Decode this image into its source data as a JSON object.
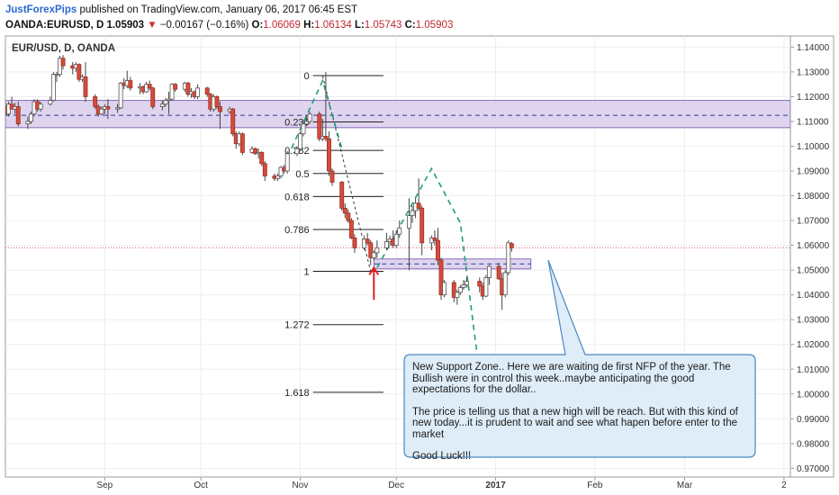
{
  "header": {
    "author": "JustForexPips",
    "published": "published on TradingView.com, January 06, 2017 06:45 EST",
    "symbol": "OANDA:EURUSD, D",
    "last": "1.05903",
    "arrow": "▼",
    "change": "−0.00167 (−0.16%)",
    "o_label": "O:",
    "o": "1.06069",
    "h_label": "H:",
    "h": "1.06134",
    "l_label": "L:",
    "l": "1.05743",
    "c_label": "C:",
    "c": "1.05903"
  },
  "chart_data": {
    "type": "candlestick",
    "title": "EUR/USD, D, OANDA",
    "ylim": [
      0.9665,
      1.1445
    ],
    "y_ticks": [
      "1.14000",
      "1.13000",
      "1.12000",
      "1.11000",
      "1.10000",
      "1.09000",
      "1.08000",
      "1.07000",
      "1.06000",
      "1.05000",
      "1.04000",
      "1.03000",
      "1.02000",
      "1.01000",
      "1.00000",
      "0.99000",
      "0.98000",
      "0.97000"
    ],
    "x_labels": [
      {
        "label": "Sep",
        "date": "2016-09-01"
      },
      {
        "label": "Oct",
        "date": "2016-10-01"
      },
      {
        "label": "Nov",
        "date": "2016-11-01"
      },
      {
        "label": "Dec",
        "date": "2016-12-01"
      },
      {
        "label": "2017",
        "date": "2017-01-01"
      },
      {
        "label": "Feb",
        "date": "2017-02-01"
      },
      {
        "label": "Mar",
        "date": "2017-03-01"
      },
      {
        "label": "2",
        "date": "2017-04-01"
      }
    ],
    "x_range": [
      "2016-08-01",
      "2017-04-03"
    ],
    "last_price": 1.05903,
    "zones": [
      {
        "y_top": 1.1185,
        "y_bottom": 1.1075,
        "mid": 1.1125,
        "x_start": "2016-08-01",
        "x_end": "2017-04-03"
      },
      {
        "y_top": 1.0545,
        "y_bottom": 1.0505,
        "mid": 1.0525,
        "x_start": "2016-11-24",
        "x_end": "2017-01-12"
      }
    ],
    "fib": [
      {
        "label": "0",
        "value": 1.1285
      },
      {
        "label": "0.236",
        "value": 1.1098
      },
      {
        "label": "0.382",
        "value": 1.0983
      },
      {
        "label": "0.5",
        "value": 1.089
      },
      {
        "label": "0.618",
        "value": 1.0797
      },
      {
        "label": "0.786",
        "value": 1.0664
      },
      {
        "label": "1",
        "value": 1.0495
      },
      {
        "label": "1.272",
        "value": 1.028
      },
      {
        "label": "1.618",
        "value": 1.0007
      }
    ],
    "fib_x": [
      "2016-11-05",
      "2016-11-27"
    ],
    "fib_anchor": {
      "from": [
        "2016-11-08",
        1.1285
      ],
      "to": [
        "2016-11-23",
        1.0495
      ]
    },
    "projection_lines": [
      [
        [
          "2016-10-28",
          1.0955
        ],
        [
          "2016-11-08",
          1.1265
        ],
        [
          "2016-11-14",
          1.099
        ]
      ],
      [
        [
          "2016-11-25",
          1.051
        ],
        [
          "2016-12-12",
          1.091
        ],
        [
          "2016-12-21",
          1.069
        ],
        [
          "2016-12-27",
          1.008
        ]
      ]
    ],
    "arrow": {
      "date": "2016-11-24",
      "from": 1.038,
      "to": 1.051
    },
    "candles": [
      [
        "2016-08-01",
        1.116,
        1.1175,
        1.1125,
        1.113
      ],
      [
        "2016-08-02",
        1.113,
        1.118,
        1.112,
        1.117
      ],
      [
        "2016-08-03",
        1.117,
        1.12,
        1.1155,
        1.115
      ],
      [
        "2016-08-04",
        1.115,
        1.1175,
        1.113,
        1.116
      ],
      [
        "2016-08-05",
        1.116,
        1.118,
        1.108,
        1.109
      ],
      [
        "2016-08-08",
        1.109,
        1.112,
        1.107,
        1.11
      ],
      [
        "2016-08-09",
        1.11,
        1.114,
        1.109,
        1.113
      ],
      [
        "2016-08-10",
        1.113,
        1.119,
        1.112,
        1.118
      ],
      [
        "2016-08-11",
        1.118,
        1.119,
        1.114,
        1.115
      ],
      [
        "2016-08-12",
        1.115,
        1.118,
        1.114,
        1.117
      ],
      [
        "2016-08-15",
        1.117,
        1.12,
        1.1165,
        1.1185
      ],
      [
        "2016-08-16",
        1.1185,
        1.13,
        1.118,
        1.129
      ],
      [
        "2016-08-17",
        1.129,
        1.13,
        1.126,
        1.129
      ],
      [
        "2016-08-18",
        1.129,
        1.1365,
        1.128,
        1.1355
      ],
      [
        "2016-08-19",
        1.1355,
        1.1368,
        1.131,
        1.1325
      ],
      [
        "2016-08-22",
        1.1325,
        1.134,
        1.129,
        1.1315
      ],
      [
        "2016-08-23",
        1.1315,
        1.134,
        1.13,
        1.133
      ],
      [
        "2016-08-24",
        1.133,
        1.1335,
        1.126,
        1.127
      ],
      [
        "2016-08-25",
        1.127,
        1.129,
        1.126,
        1.128
      ],
      [
        "2016-08-26",
        1.128,
        1.134,
        1.118,
        1.12
      ],
      [
        "2016-08-29",
        1.12,
        1.121,
        1.115,
        1.116
      ],
      [
        "2016-08-30",
        1.116,
        1.117,
        1.112,
        1.113
      ],
      [
        "2016-08-31",
        1.113,
        1.116,
        1.1125,
        1.115
      ],
      [
        "2016-09-01",
        1.115,
        1.117,
        1.113,
        1.116
      ],
      [
        "2016-09-02",
        1.116,
        1.119,
        1.111,
        1.115
      ],
      [
        "2016-09-05",
        1.115,
        1.117,
        1.1135,
        1.1155
      ],
      [
        "2016-09-06",
        1.1155,
        1.126,
        1.115,
        1.1255
      ],
      [
        "2016-09-07",
        1.1255,
        1.1275,
        1.123,
        1.1245
      ],
      [
        "2016-09-08",
        1.1245,
        1.1305,
        1.1235,
        1.1265
      ],
      [
        "2016-09-09",
        1.1265,
        1.128,
        1.1225,
        1.1235
      ],
      [
        "2016-09-12",
        1.1235,
        1.1255,
        1.121,
        1.124
      ],
      [
        "2016-09-13",
        1.124,
        1.1245,
        1.121,
        1.122
      ],
      [
        "2016-09-14",
        1.122,
        1.126,
        1.1215,
        1.125
      ],
      [
        "2016-09-15",
        1.125,
        1.1265,
        1.1225,
        1.1235
      ],
      [
        "2016-09-16",
        1.1235,
        1.124,
        1.115,
        1.116
      ],
      [
        "2016-09-19",
        1.116,
        1.1185,
        1.1145,
        1.117
      ],
      [
        "2016-09-20",
        1.117,
        1.1195,
        1.116,
        1.1185
      ],
      [
        "2016-09-21",
        1.1185,
        1.122,
        1.113,
        1.119
      ],
      [
        "2016-09-22",
        1.119,
        1.1255,
        1.1185,
        1.125
      ],
      [
        "2016-09-23",
        1.125,
        1.1255,
        1.122,
        1.123
      ],
      [
        "2016-09-26",
        1.123,
        1.126,
        1.122,
        1.1255
      ],
      [
        "2016-09-27",
        1.1255,
        1.126,
        1.12,
        1.121
      ],
      [
        "2016-09-28",
        1.121,
        1.1235,
        1.1195,
        1.122
      ],
      [
        "2016-09-29",
        1.122,
        1.1225,
        1.119,
        1.12
      ],
      [
        "2016-09-30",
        1.12,
        1.125,
        1.119,
        1.1235
      ],
      [
        "2016-10-03",
        1.1235,
        1.124,
        1.12,
        1.121
      ],
      [
        "2016-10-04",
        1.121,
        1.1215,
        1.114,
        1.115
      ],
      [
        "2016-10-05",
        1.115,
        1.121,
        1.114,
        1.12
      ],
      [
        "2016-10-06",
        1.12,
        1.1205,
        1.115,
        1.116
      ],
      [
        "2016-10-07",
        1.116,
        1.118,
        1.107,
        1.114
      ],
      [
        "2016-10-10",
        1.114,
        1.116,
        1.113,
        1.115
      ],
      [
        "2016-10-11",
        1.115,
        1.1155,
        1.104,
        1.105
      ],
      [
        "2016-10-12",
        1.105,
        1.106,
        1.099,
        1.101
      ],
      [
        "2016-10-13",
        1.101,
        1.106,
        1.1,
        1.105
      ],
      [
        "2016-10-14",
        1.105,
        1.1055,
        1.0965,
        1.0975
      ],
      [
        "2016-10-17",
        1.0975,
        1.1,
        1.097,
        1.099
      ],
      [
        "2016-10-18",
        1.099,
        1.0995,
        1.0965,
        1.097
      ],
      [
        "2016-10-19",
        1.097,
        1.099,
        1.095,
        1.0975
      ],
      [
        "2016-10-20",
        1.0975,
        1.098,
        1.092,
        1.093
      ],
      [
        "2016-10-21",
        1.093,
        1.094,
        1.086,
        1.088
      ],
      [
        "2016-10-24",
        1.088,
        1.089,
        1.086,
        1.087
      ],
      [
        "2016-10-25",
        1.087,
        1.089,
        1.086,
        1.088
      ],
      [
        "2016-10-26",
        1.088,
        1.092,
        1.087,
        1.0915
      ],
      [
        "2016-10-27",
        1.0915,
        1.0925,
        1.089,
        1.09
      ],
      [
        "2016-10-28",
        1.09,
        1.098,
        1.089,
        1.097
      ],
      [
        "2016-10-31",
        1.097,
        1.1,
        1.096,
        1.099
      ],
      [
        "2016-11-01",
        1.099,
        1.106,
        1.0985,
        1.105
      ],
      [
        "2016-11-02",
        1.105,
        1.11,
        1.104,
        1.109
      ],
      [
        "2016-11-03",
        1.109,
        1.1125,
        1.108,
        1.11
      ],
      [
        "2016-11-04",
        1.11,
        1.114,
        1.109,
        1.113
      ],
      [
        "2016-11-07",
        1.113,
        1.114,
        1.102,
        1.103
      ],
      [
        "2016-11-08",
        1.103,
        1.111,
        1.102,
        1.104
      ],
      [
        "2016-11-09",
        1.104,
        1.13,
        1.102,
        1.103
      ],
      [
        "2016-11-10",
        1.103,
        1.106,
        1.088,
        1.09
      ],
      [
        "2016-11-11",
        1.09,
        1.091,
        1.084,
        1.0855
      ],
      [
        "2016-11-14",
        1.0855,
        1.086,
        1.074,
        1.075
      ],
      [
        "2016-11-15",
        1.075,
        1.077,
        1.071,
        1.073
      ],
      [
        "2016-11-16",
        1.073,
        1.0745,
        1.069,
        1.07
      ],
      [
        "2016-11-17",
        1.07,
        1.071,
        1.0625,
        1.063
      ],
      [
        "2016-11-18",
        1.063,
        1.0645,
        1.057,
        1.059
      ],
      [
        "2016-11-21",
        1.059,
        1.064,
        1.058,
        1.0625
      ],
      [
        "2016-11-22",
        1.0625,
        1.065,
        1.06,
        1.061
      ],
      [
        "2016-11-23",
        1.061,
        1.062,
        1.052,
        1.055
      ],
      [
        "2016-11-24",
        1.055,
        1.058,
        1.054,
        1.057
      ],
      [
        "2016-11-25",
        1.057,
        1.062,
        1.055,
        1.059
      ],
      [
        "2016-11-28",
        1.059,
        1.065,
        1.058,
        1.0615
      ],
      [
        "2016-11-29",
        1.0615,
        1.064,
        1.06,
        1.0625
      ],
      [
        "2016-11-30",
        1.0625,
        1.066,
        1.059,
        1.06
      ],
      [
        "2016-12-01",
        1.06,
        1.066,
        1.059,
        1.0645
      ],
      [
        "2016-12-02",
        1.0645,
        1.07,
        1.063,
        1.067
      ],
      [
        "2016-12-05",
        1.067,
        1.079,
        1.05,
        1.072
      ],
      [
        "2016-12-06",
        1.072,
        1.076,
        1.069,
        1.074
      ],
      [
        "2016-12-07",
        1.074,
        1.079,
        1.071,
        1.077
      ],
      [
        "2016-12-08",
        1.077,
        1.087,
        1.074,
        1.075
      ],
      [
        "2016-12-09",
        1.075,
        1.076,
        1.056,
        1.061
      ],
      [
        "2016-12-12",
        1.061,
        1.064,
        1.058,
        1.063
      ],
      [
        "2016-12-13",
        1.063,
        1.066,
        1.06,
        1.062
      ],
      [
        "2016-12-14",
        1.062,
        1.067,
        1.052,
        1.054
      ],
      [
        "2016-12-15",
        1.054,
        1.055,
        1.038,
        1.04
      ],
      [
        "2016-12-16",
        1.04,
        1.046,
        1.039,
        1.045
      ],
      [
        "2016-12-19",
        1.045,
        1.046,
        1.037,
        1.039
      ],
      [
        "2016-12-20",
        1.039,
        1.042,
        1.036,
        1.041
      ],
      [
        "2016-12-21",
        1.041,
        1.044,
        1.04,
        1.043
      ],
      [
        "2016-12-22",
        1.043,
        1.046,
        1.042,
        1.044
      ],
      [
        "2016-12-23",
        1.044,
        1.047,
        1.043,
        1.0455
      ],
      [
        "2016-12-27",
        1.0455,
        1.047,
        1.041,
        1.0435
      ],
      [
        "2016-12-28",
        1.0435,
        1.045,
        1.038,
        1.0395
      ],
      [
        "2016-12-29",
        1.0395,
        1.048,
        1.039,
        1.047
      ],
      [
        "2016-12-30",
        1.047,
        1.052,
        1.044,
        1.0515
      ],
      [
        "2017-01-02",
        1.0515,
        1.053,
        1.046,
        1.0465
      ],
      [
        "2017-01-03",
        1.0465,
        1.049,
        1.034,
        1.04
      ],
      [
        "2017-01-04",
        1.04,
        1.05,
        1.039,
        1.049
      ],
      [
        "2017-01-05",
        1.049,
        1.062,
        1.048,
        1.061
      ],
      [
        "2017-01-06",
        1.06069,
        1.06134,
        1.05743,
        1.05903
      ]
    ]
  },
  "callout": {
    "p1": "New Support Zone..  Here we are  waiting de first NFP of the year. The Bullish were in control this week..maybe anticipating the good expectations for the dollar..",
    "p2": "The price is telling us that a new high will be reach. But with this kind of new today...it is prudent to wait and see what hapen before enter to the market",
    "p3": "Good Luck!!!"
  },
  "colors": {
    "up": "#ffffff",
    "down": "#d64b3b",
    "wick": "#444444",
    "zone_fill": "#d9cdeb",
    "zone_border": "#8a6bb8",
    "zone_mid": "#2b3b9c",
    "fib": "#222222",
    "projection": "#1f9e74",
    "callout_bg": "#deedf8",
    "callout_border": "#4a88c2",
    "arrow": "#e02020",
    "price_line": "#e05050"
  }
}
